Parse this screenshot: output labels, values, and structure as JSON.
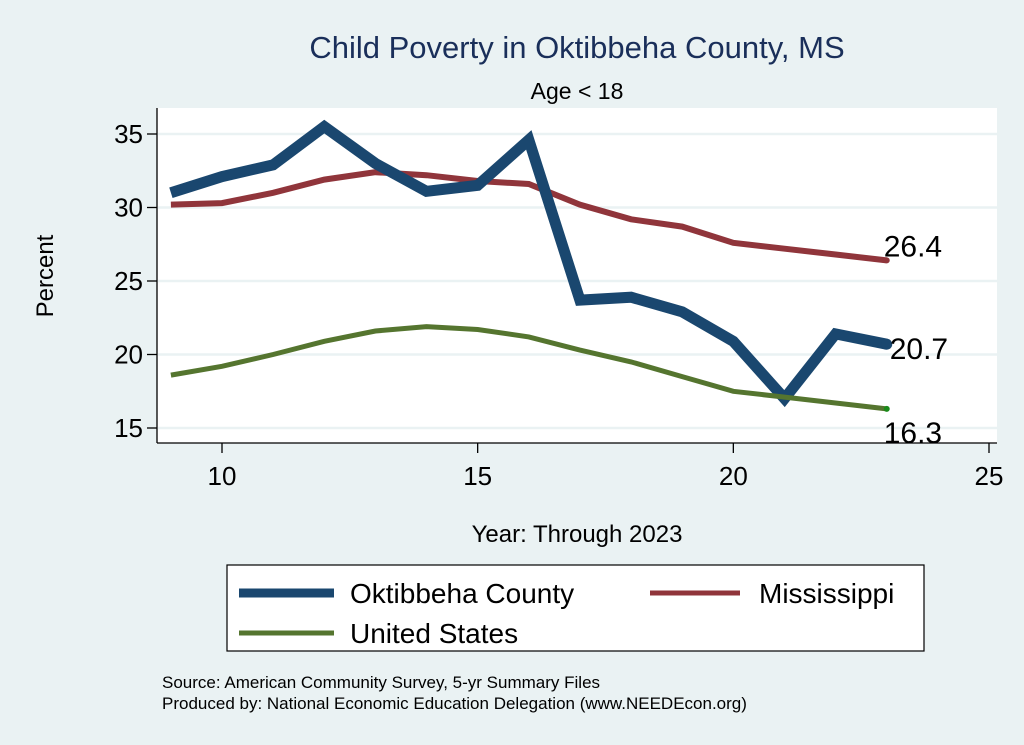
{
  "chart_data": {
    "type": "line",
    "title": "Child Poverty in Oktibbeha County, MS",
    "subtitle": "Age < 18",
    "xlabel": "Year: Through 2023",
    "ylabel": "Percent",
    "xlim": [
      8.7,
      25.2
    ],
    "ylim": [
      14.0,
      36.8
    ],
    "xticks": [
      10,
      15,
      20,
      25
    ],
    "yticks": [
      15,
      20,
      25,
      30,
      35
    ],
    "grid": true,
    "x": [
      9,
      10,
      11,
      12,
      13,
      14,
      15,
      16,
      17,
      18,
      19,
      20,
      21,
      22,
      23
    ],
    "series": [
      {
        "name": "Oktibbeha County",
        "color": "#1a476f",
        "values": [
          31.0,
          32.1,
          32.9,
          35.5,
          33.0,
          31.1,
          31.5,
          34.6,
          23.7,
          23.9,
          22.9,
          20.9,
          17.0,
          21.4,
          20.7
        ],
        "end_label": "20.7"
      },
      {
        "name": "Mississippi",
        "color": "#90353b",
        "values": [
          30.2,
          30.3,
          31.0,
          31.9,
          32.4,
          32.2,
          31.8,
          31.6,
          30.2,
          29.2,
          28.7,
          27.6,
          27.2,
          26.8,
          26.4
        ],
        "end_label": "26.4"
      },
      {
        "name": "United States",
        "color": "#55752f",
        "values": [
          18.6,
          19.2,
          20.0,
          20.9,
          21.6,
          21.9,
          21.7,
          21.2,
          20.3,
          19.5,
          18.5,
          17.5,
          17.1,
          16.7,
          16.3
        ],
        "end_label": "16.3"
      }
    ],
    "legend": {
      "placement": "bottom",
      "entries": [
        "Oktibbeha County",
        "Mississippi",
        "United States"
      ]
    },
    "notes": [
      "Source: American Community Survey, 5-yr Summary Files",
      "Produced by: National Economic Education Delegation (www.NEEDEcon.org)"
    ]
  },
  "colors": {
    "background": "#eaf2f3",
    "plot_background": "#ffffff",
    "grid": "#eaf2f3",
    "title": "#1a2f5a"
  }
}
